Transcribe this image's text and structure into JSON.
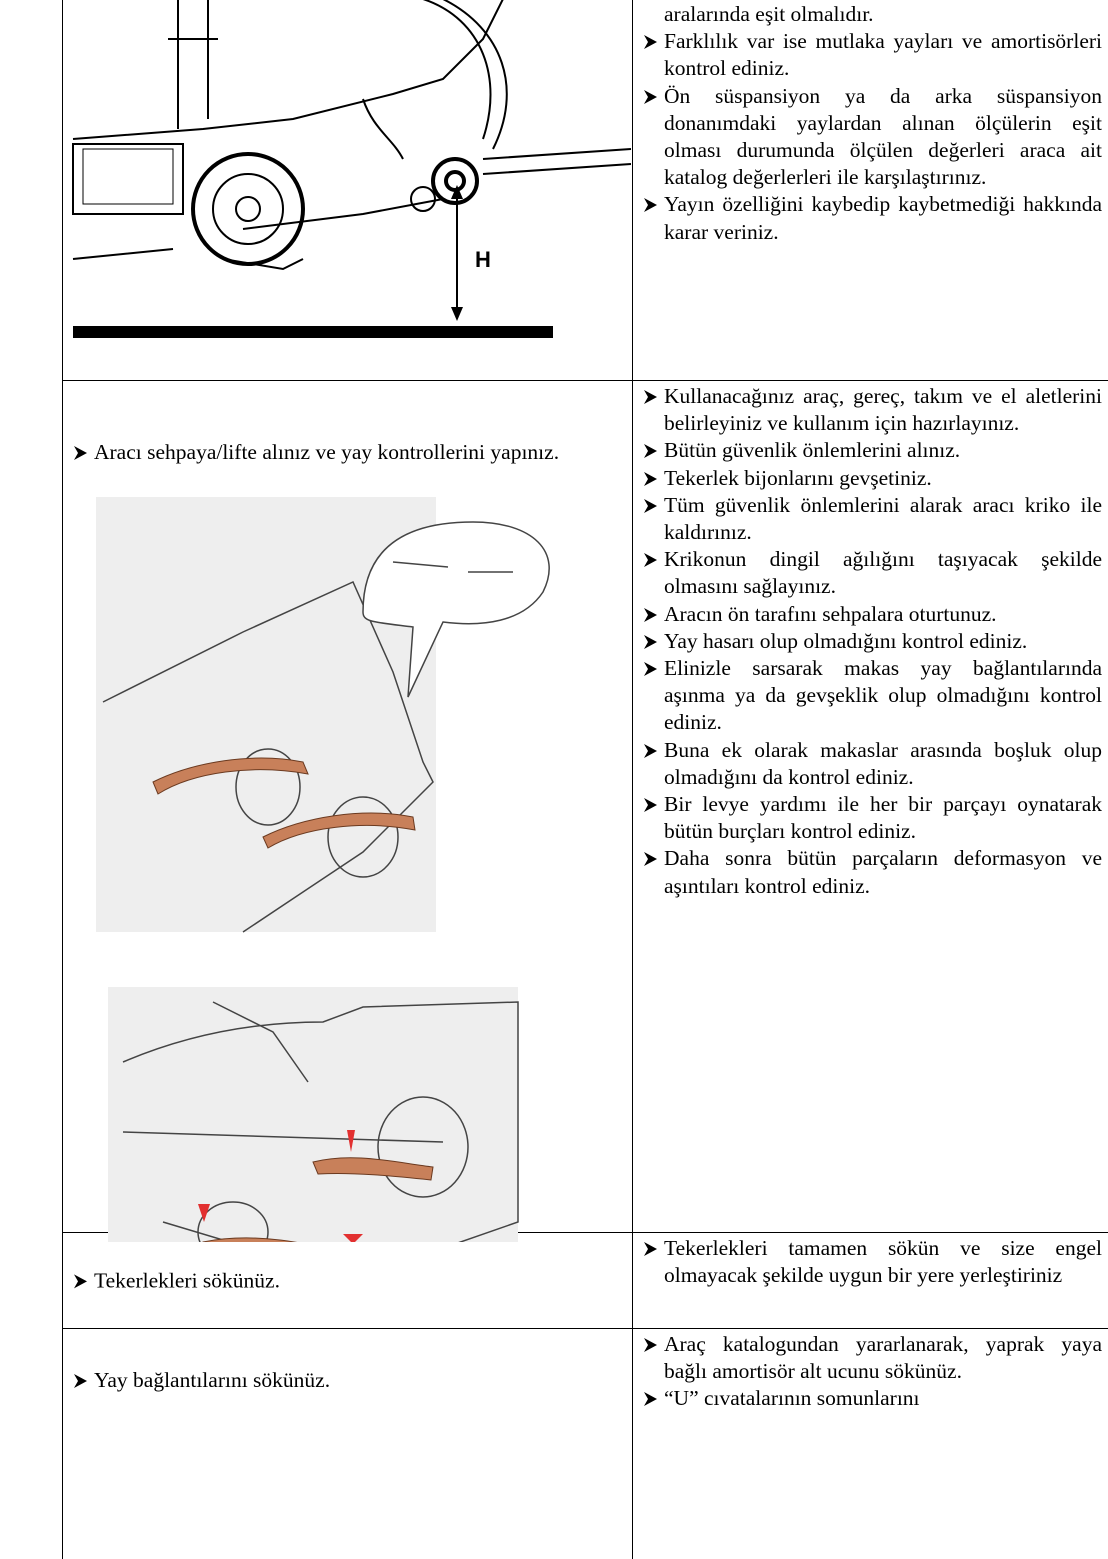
{
  "table": {
    "rows": [
      {
        "left": {
          "image_label": "H"
        },
        "right": {
          "continuation": "aralarında eşit olmalıdır.",
          "bullets": [
            "Farklılık var ise mutlaka yayları ve amortisörleri kontrol ediniz.",
            "Ön süspansiyon ya da arka süspansiyon donanımdaki yaylardan alınan ölçülerin eşit olması durumunda ölçülen değerleri araca ait katalog değerlerleri ile karşılaştırınız.",
            "Yayın özelliğini kaybedip kaybetmediği hakkında karar veriniz."
          ]
        }
      },
      {
        "left": {
          "text": "Aracı sehpaya/lifte alınız ve yay kontrollerini yapınız."
        },
        "right": {
          "bullets": [
            "Kullanacağınız araç, gereç, takım ve el aletlerini belirleyiniz ve kullanım için hazırlayınız.",
            "Bütün güvenlik önlemlerini alınız.",
            "Tekerlek bijonlarını gevşetiniz.",
            "Tüm güvenlik önlemlerini alarak aracı kriko ile kaldırınız.",
            "Krikonun dingil ağılığını taşıyacak şekilde olmasını sağlayınız.",
            "Aracın ön tarafını sehpalara oturtunuz.",
            "Yay hasarı olup olmadığını kontrol ediniz.",
            "Elinizle sarsarak makas yay bağlantılarında aşınma ya da gevşeklik olup olmadığını kontrol ediniz.",
            "Buna ek olarak makaslar arasında boşluk olup olmadığını da kontrol ediniz.",
            "Bir levye yardımı ile her bir parçayı oynatarak bütün burçları kontrol ediniz.",
            "Daha sonra bütün parçaların deformasyon ve aşıntıları kontrol ediniz."
          ]
        }
      },
      {
        "left": {
          "text": "Tekerlekleri sökünüz."
        },
        "right": {
          "bullets": [
            "Tekerlekleri tamamen sökün ve size engel olmayacak şekilde uygun bir yere yerleştiriniz"
          ]
        }
      },
      {
        "left": {
          "text": "Yay bağlantılarını sökünüz."
        },
        "right": {
          "bullets": [
            "Araç katalogundan yararlanarak, yaprak yaya bağlı amortisör alt ucunu sökünüz.",
            "“U” cıvatalarının somunlarını"
          ]
        }
      }
    ]
  }
}
